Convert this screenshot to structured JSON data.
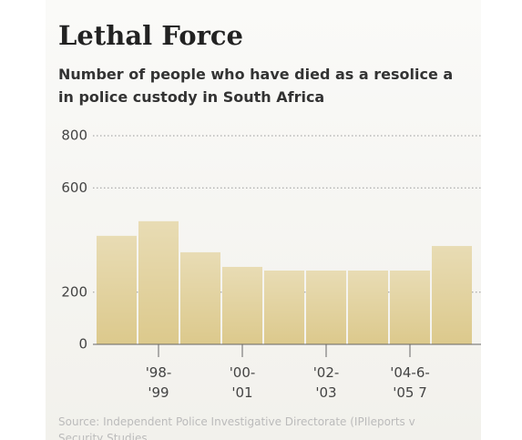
{
  "chart_data": {
    "type": "bar",
    "title": "Lethal Force",
    "subtitle": [
      "Number of people who have died as a resolice a",
      "in police custody in South Africa"
    ],
    "categories": [
      null,
      "'98-\n'99",
      null,
      "'00-\n'01",
      null,
      "'02-\n'03",
      null,
      "'04-6-\n'05 7",
      null
    ],
    "values": [
      416,
      472,
      353,
      297,
      283,
      283,
      283,
      283,
      377
    ],
    "color": "#dcc98c",
    "ylim": [
      0,
      800
    ],
    "yticks": [
      0,
      200,
      600,
      800
    ],
    "grid": true,
    "source": [
      "Source: Independent Police Investigative Directorate (IPIleports v",
      "Security Studies"
    ]
  }
}
